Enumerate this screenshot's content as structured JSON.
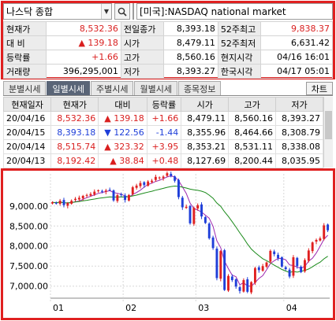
{
  "search": {
    "combo_label": "나스닥 종합",
    "market_text": "[미국]:NASDAQ national market"
  },
  "quote": {
    "rows": [
      [
        {
          "l": "현재가"
        },
        {
          "v": "8,532.36",
          "c": "red"
        },
        {
          "l": "전일종가"
        },
        {
          "v": "8,393.18"
        },
        {
          "l": "52주최고"
        },
        {
          "v": "9,838.37",
          "c": "red"
        }
      ],
      [
        {
          "l": "대  비"
        },
        {
          "v": "▲  139.18",
          "c": "red"
        },
        {
          "l": "시가"
        },
        {
          "v": "8,479.11"
        },
        {
          "l": "52주최저"
        },
        {
          "v": "6,631.42"
        }
      ],
      [
        {
          "l": "등락률"
        },
        {
          "v": "+1.66",
          "c": "red"
        },
        {
          "l": "고가"
        },
        {
          "v": "8,560.16"
        },
        {
          "l": "현지시각"
        },
        {
          "v": "04/16 16:01"
        }
      ],
      [
        {
          "l": "거래량"
        },
        {
          "v": "396,295,001"
        },
        {
          "l": "저가"
        },
        {
          "v": "8,393.27"
        },
        {
          "l": "한국시각"
        },
        {
          "v": "04/17 05:01"
        }
      ]
    ]
  },
  "tabs": [
    "분별시세",
    "일별시세",
    "주별시세",
    "월별시세",
    "종목정보"
  ],
  "chart_button": "차트",
  "daily": {
    "headers": [
      "현재일자",
      "현재가",
      "대비",
      "등락률",
      "시가",
      "고가",
      "저가"
    ],
    "rows": [
      {
        "date": "20/04/16",
        "price": "8,532.36",
        "pc": "red",
        "diff": "▲ 139.18",
        "rate": "+1.66",
        "oc": "red",
        "open": "8,479.11",
        "high": "8,560.16",
        "low": "8,393.27"
      },
      {
        "date": "20/04/15",
        "price": "8,393.18",
        "pc": "blue",
        "diff": "▼ 122.56",
        "rate": "-1.44",
        "oc": "blue",
        "open": "8,355.96",
        "high": "8,464.66",
        "low": "8,308.79"
      },
      {
        "date": "20/04/14",
        "price": "8,515.74",
        "pc": "red",
        "diff": "▲ 323.32",
        "rate": "+3.95",
        "oc": "red",
        "open": "8,353.21",
        "high": "8,531.11",
        "low": "8,338.08"
      },
      {
        "date": "20/04/13",
        "price": "8,192.42",
        "pc": "red",
        "diff": "▲ 38.84",
        "rate": "+0.48",
        "oc": "red",
        "open": "8,127.69",
        "high": "8,200.44",
        "low": "8,035.95"
      }
    ]
  },
  "chart_data": {
    "type": "candlestick",
    "y_ticks": [
      "9,000.00",
      "8,500.00",
      "8,000.00",
      "7,500.00",
      "7,000.00"
    ],
    "y_tick_values": [
      9000,
      8500,
      8000,
      7500,
      7000
    ],
    "ylim": [
      6700,
      9800
    ],
    "x_ticks": [
      "01",
      "02",
      "03",
      "04"
    ],
    "x_tick_positions": [
      0,
      19,
      38,
      61
    ],
    "num_sessions": 73,
    "closes": [
      9092,
      9068,
      9129,
      9020,
      9071,
      9129,
      9178,
      9203,
      9251,
      9273,
      9299,
      9357,
      9388,
      9370,
      9383,
      9402,
      9139,
      9269,
      9275,
      9150,
      9273,
      9467,
      9508,
      9572,
      9520,
      9610,
      9629,
      9725,
      9711,
      9731,
      9817,
      9750,
      9628,
      9221,
      8966,
      8980,
      8567,
      8952,
      9018,
      8738,
      8575,
      8194,
      7950,
      7201,
      7875,
      6905,
      7255,
      7150,
      6990,
      6880,
      7150,
      6860,
      7100,
      7450,
      7400,
      7500,
      7590,
      7880,
      7797,
      7700,
      7487,
      7425,
      7240,
      7720,
      7500,
      7350,
      7650,
      7890,
      8090,
      8153,
      8192,
      8516,
      8393
    ],
    "series": [
      {
        "name": "short MA",
        "color": "#9c27b0"
      },
      {
        "name": "long MA",
        "color": "#1a8a1a"
      }
    ],
    "up_color": "#e02020",
    "down_color": "#1f3fd9"
  }
}
